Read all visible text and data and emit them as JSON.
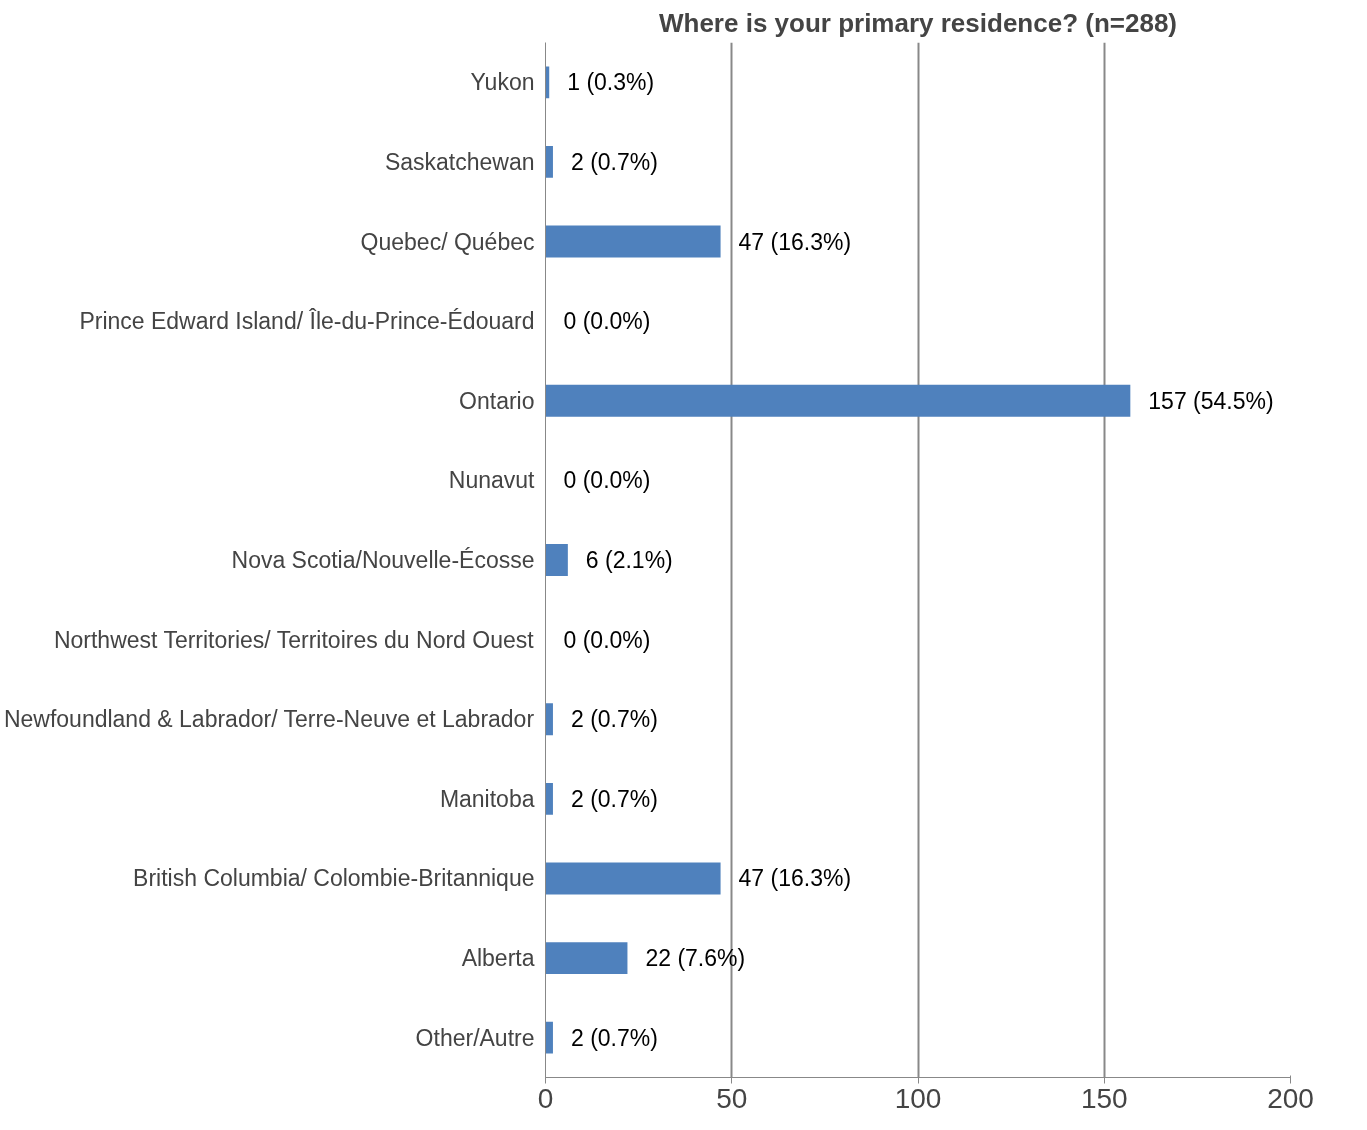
{
  "chart_data": {
    "type": "bar",
    "orientation": "horizontal",
    "title": "Where is your primary residence? (n=288)",
    "categories": [
      "Yukon",
      "Saskatchewan",
      "Quebec/ Québec",
      "Prince Edward Island/ Île-du-Prince-Édouard",
      "Ontario",
      "Nunavut",
      "Nova Scotia/Nouvelle-Écosse",
      "Northwest Territories/ Territoires du Nord Ouest",
      "Newfoundland & Labrador/ Terre-Neuve et Labrador",
      "Manitoba",
      "British Columbia/ Colombie-Britannique",
      "Alberta",
      "Other/Autre"
    ],
    "values": [
      1,
      2,
      47,
      0,
      157,
      0,
      6,
      0,
      2,
      2,
      47,
      22,
      2
    ],
    "value_labels": [
      "1 (0.3%)",
      "2 (0.7%)",
      "47 (16.3%)",
      "0 (0.0%)",
      "157 (54.5%)",
      "0 (0.0%)",
      "6 (2.1%)",
      "0 (0.0%)",
      "2 (0.7%)",
      "2 (0.7%)",
      "47 (16.3%)",
      "22 (7.6%)",
      "2 (0.7%)"
    ],
    "color": "#4f81bd",
    "xlim": [
      0,
      200
    ],
    "xticks": [
      0,
      50,
      100,
      150,
      200
    ],
    "grid": "x"
  }
}
